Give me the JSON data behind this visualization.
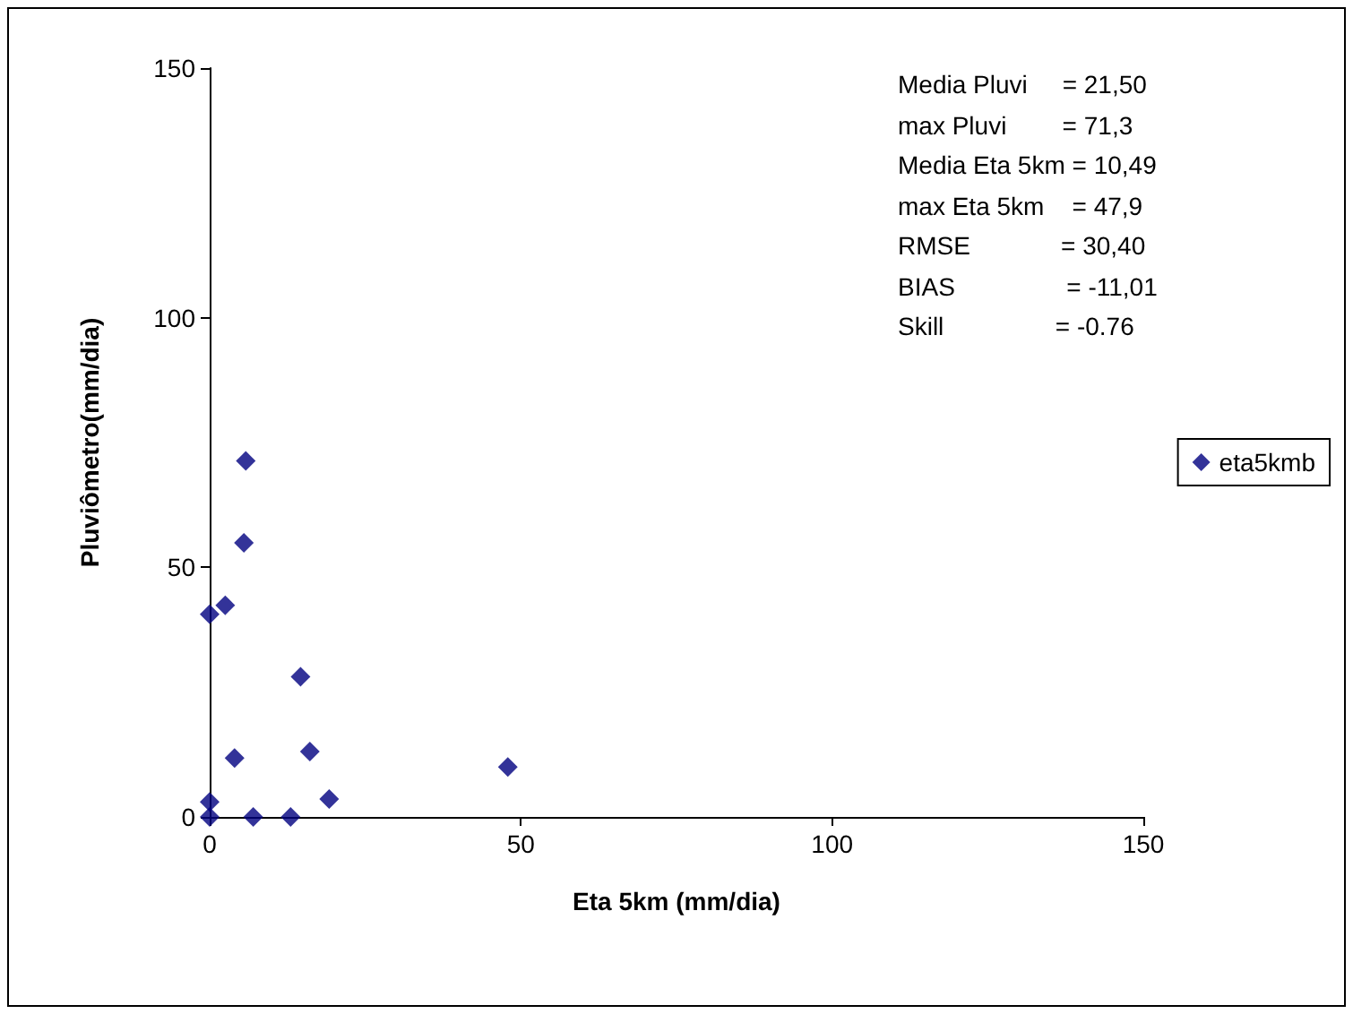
{
  "chart_data": {
    "type": "scatter",
    "xlabel": "Eta 5km (mm/dia)",
    "ylabel": "Pluviômetro(mm/dia)",
    "x": [
      0,
      2.5,
      5.5,
      5.8,
      14.6,
      4.0,
      16.1,
      47.9,
      19.2,
      0,
      0,
      7.0,
      13.0
    ],
    "series": [
      {
        "name": "eta5kmb",
        "color": "#000080",
        "values": [
          40.6,
          42.4,
          54.9,
          71.3,
          28.1,
          11.8,
          13.1,
          10,
          3.6,
          3,
          0,
          0,
          0
        ]
      }
    ],
    "xlim": [
      0,
      150
    ],
    "xticks": [
      0,
      50,
      100,
      150
    ],
    "ylim": [
      0,
      150
    ],
    "yticks": [
      0,
      50,
      100,
      150
    ],
    "annotations": [
      "Media Pluvi     = 21,50",
      "max Pluvi        = 71,3",
      "Media Eta 5km = 10,49",
      "max Eta 5km    = 47,9",
      "RMSE             = 30,40",
      "BIAS                = -11,01",
      "Skill                = -0.76"
    ],
    "marker": "diamond",
    "grid": false,
    "legend": "right"
  }
}
